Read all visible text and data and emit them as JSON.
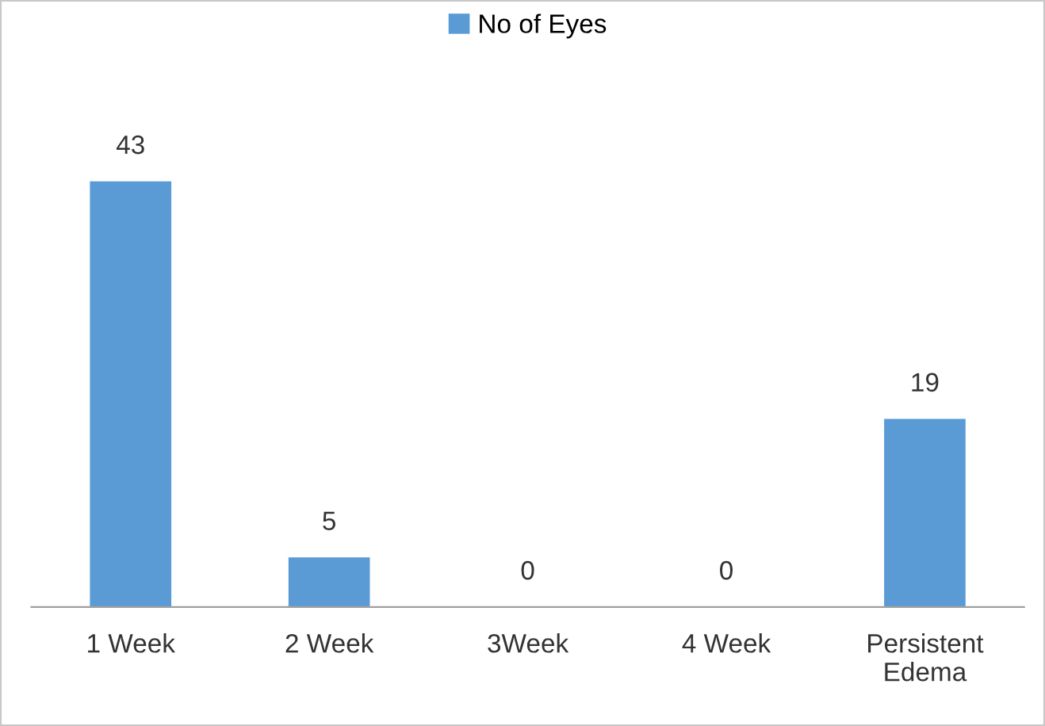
{
  "chart_data": {
    "type": "bar",
    "categories": [
      "1 Week",
      "2 Week",
      "3Week",
      "4 Week",
      "Persistent\nEdema"
    ],
    "series": [
      {
        "name": "No of Eyes",
        "color": "#5b9bd5",
        "values": [
          43,
          5,
          0,
          0,
          19
        ]
      }
    ],
    "tick_labels": "x",
    "data_labels": true,
    "legend": "top",
    "grid": false
  }
}
